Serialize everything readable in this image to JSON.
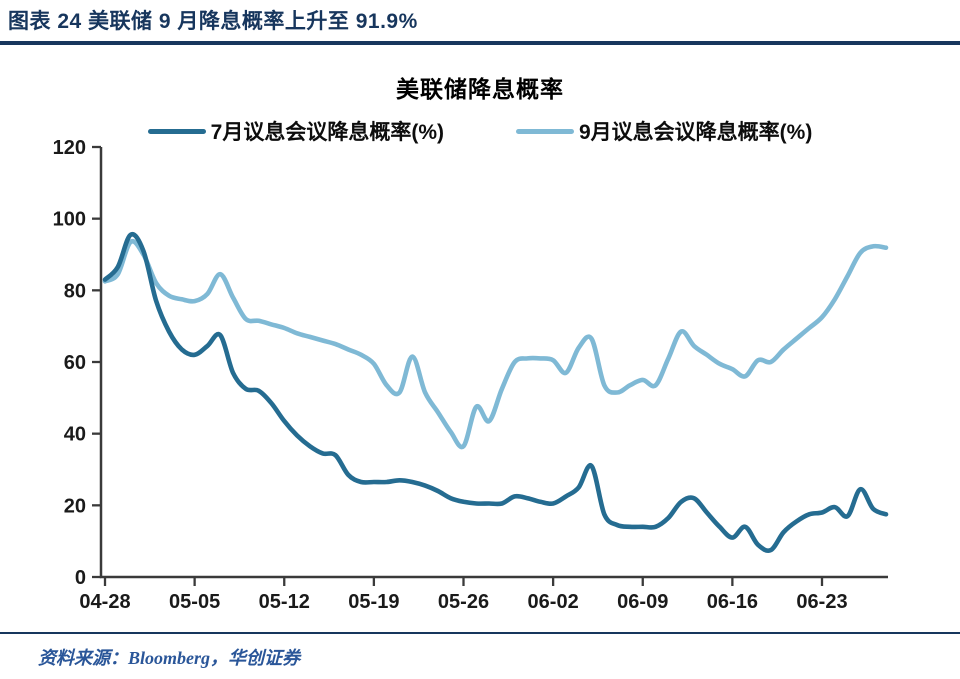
{
  "header": {
    "title": "图表 24  美联储 9 月降息概率上升至 91.9%"
  },
  "footer": {
    "source": "资料来源：Bloomberg，华创证券"
  },
  "colors": {
    "accent_navy": "#17365D",
    "july_line": "#256C91",
    "september_line": "#7FB9D5",
    "axis": "#3A3A3A",
    "tick_text": "#1A1A1A",
    "source_text": "#2A5699"
  },
  "chart_data": {
    "type": "line",
    "title": "美联储降息概率",
    "ylabel": "",
    "xlabel": "",
    "ylim": [
      0,
      120
    ],
    "y_ticks": [
      0,
      20,
      40,
      60,
      80,
      100,
      120
    ],
    "x_tick_labels": [
      "04-28",
      "05-05",
      "05-12",
      "05-19",
      "05-26",
      "06-02",
      "06-09",
      "06-16",
      "06-23"
    ],
    "x_tick_indices": [
      0,
      7,
      14,
      21,
      28,
      35,
      42,
      49,
      56
    ],
    "grid": false,
    "legend_position": "top",
    "categories": [
      "04-28",
      "04-29",
      "04-30",
      "05-01",
      "05-02",
      "05-03",
      "05-04",
      "05-05",
      "05-06",
      "05-07",
      "05-08",
      "05-09",
      "05-10",
      "05-11",
      "05-12",
      "05-13",
      "05-14",
      "05-15",
      "05-16",
      "05-17",
      "05-18",
      "05-19",
      "05-20",
      "05-21",
      "05-22",
      "05-23",
      "05-24",
      "05-25",
      "05-26",
      "05-27",
      "05-28",
      "05-29",
      "05-30",
      "05-31",
      "06-01",
      "06-02",
      "06-03",
      "06-04",
      "06-05",
      "06-06",
      "06-07",
      "06-08",
      "06-09",
      "06-10",
      "06-11",
      "06-12",
      "06-13",
      "06-14",
      "06-15",
      "06-16",
      "06-17",
      "06-18",
      "06-19",
      "06-20",
      "06-21",
      "06-22",
      "06-23",
      "06-24",
      "06-25",
      "06-26",
      "06-27",
      "06-28"
    ],
    "series": [
      {
        "name": "7月议息会议降息概率(%)",
        "color": "#256C91",
        "values": [
          83,
          86.5,
          95.5,
          91,
          77,
          68.5,
          63.5,
          62,
          64.5,
          67.5,
          57,
          52.5,
          52,
          48.5,
          43.5,
          39.5,
          36.5,
          34.5,
          34,
          28.5,
          26.5,
          26.5,
          26.5,
          27,
          26.5,
          25.5,
          24,
          22,
          21,
          20.5,
          20.5,
          20.5,
          22.5,
          22,
          21,
          20.5,
          22.5,
          25,
          31,
          17.5,
          14.5,
          14,
          14,
          14,
          16.5,
          21,
          22,
          18,
          14,
          11,
          14,
          9,
          7.5,
          12.5,
          15.5,
          17.5,
          18,
          19.5,
          17,
          24.5,
          19,
          17.5
        ]
      },
      {
        "name": "9月议息会议降息概率(%)",
        "color": "#7FB9D5",
        "values": [
          82.5,
          84.5,
          93.5,
          90,
          82,
          78.5,
          77.5,
          77,
          79,
          84.5,
          78,
          72,
          71.5,
          70.5,
          69.5,
          68,
          67,
          66,
          65,
          63.5,
          62,
          59.5,
          53.5,
          51.5,
          61.5,
          51.5,
          46,
          40.5,
          36.5,
          47.5,
          43.5,
          52.5,
          60,
          61,
          61,
          60.5,
          57,
          64,
          66.5,
          53.5,
          51.5,
          53.5,
          55,
          53.5,
          61,
          68.5,
          64.5,
          62,
          59.5,
          58,
          56,
          60.5,
          60,
          63.5,
          66.5,
          69.5,
          72.5,
          77.5,
          84,
          90.5,
          92.3,
          91.9
        ]
      }
    ]
  }
}
